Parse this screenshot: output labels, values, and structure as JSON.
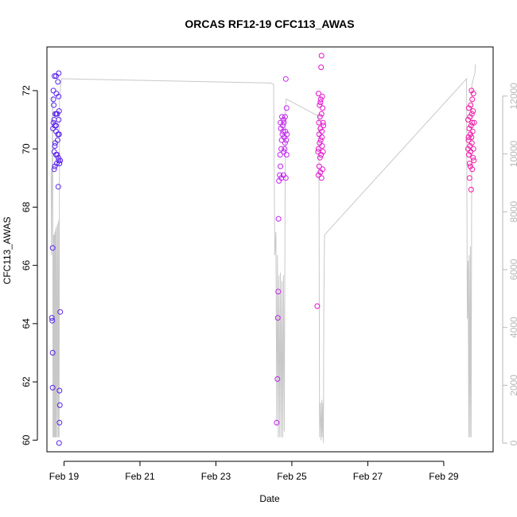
{
  "chart_data": {
    "type": "scatter",
    "title": "ORCAS RF12-19 CFC113_AWAS",
    "xlabel": "Date",
    "ylabel": "CFC113_AWAS",
    "x_unit": "day of February 2016",
    "xlim": [
      18.55,
      30.3
    ],
    "x_ticks": [
      {
        "value": 19,
        "label": "Feb 19"
      },
      {
        "value": 21,
        "label": "Feb 21"
      },
      {
        "value": 23,
        "label": "Feb 23"
      },
      {
        "value": 25,
        "label": "Feb 25"
      },
      {
        "value": 27,
        "label": "Feb 27"
      },
      {
        "value": 29,
        "label": "Feb 29"
      }
    ],
    "ylim": [
      59.6,
      73.5
    ],
    "y_ticks": [
      60,
      62,
      64,
      66,
      68,
      70,
      72
    ],
    "y2_ticks": [
      0,
      2000,
      4000,
      6000,
      8000,
      10000,
      12000
    ],
    "y2lim": [
      -300,
      13700
    ],
    "grid": false,
    "colors": {
      "axis": "#000000",
      "secondary_axis": "#b8b8b8",
      "secondary_line": "#c8c8c8",
      "flight_1": "#5a24ee",
      "flight_2": "#c226ef",
      "flight_3": "#e313ce",
      "flight_4": "#f219a7"
    },
    "series": [
      {
        "color": "#5a24ee",
        "points": [
          [
            18.7,
            66.6
          ],
          [
            18.68,
            64.2
          ],
          [
            18.69,
            64.1
          ],
          [
            18.7,
            63.0
          ],
          [
            18.7,
            61.8
          ],
          [
            18.88,
            61.7
          ],
          [
            18.89,
            61.2
          ],
          [
            18.88,
            60.6
          ],
          [
            18.87,
            59.9
          ],
          [
            18.9,
            64.4
          ],
          [
            18.85,
            68.7
          ],
          [
            18.72,
            72.0
          ],
          [
            18.75,
            72.5
          ],
          [
            18.79,
            72.5
          ],
          [
            18.86,
            72.6
          ],
          [
            18.8,
            71.9
          ],
          [
            18.86,
            71.8
          ],
          [
            18.72,
            71.7
          ],
          [
            18.73,
            71.5
          ],
          [
            18.8,
            71.2
          ],
          [
            18.77,
            71.2
          ],
          [
            18.87,
            71.3
          ],
          [
            18.82,
            71.2
          ],
          [
            18.74,
            71.0
          ],
          [
            18.72,
            70.9
          ],
          [
            18.79,
            70.8
          ],
          [
            18.86,
            71.0
          ],
          [
            18.76,
            70.8
          ],
          [
            18.71,
            70.7
          ],
          [
            18.79,
            70.6
          ],
          [
            18.84,
            70.5
          ],
          [
            18.87,
            70.5
          ],
          [
            18.83,
            70.3
          ],
          [
            18.76,
            70.1
          ],
          [
            18.74,
            69.9
          ],
          [
            18.79,
            69.8
          ],
          [
            18.82,
            69.8
          ],
          [
            18.85,
            69.7
          ],
          [
            18.9,
            69.6
          ],
          [
            18.86,
            69.6
          ],
          [
            18.76,
            69.4
          ],
          [
            18.81,
            69.5
          ],
          [
            18.74,
            69.3
          ],
          [
            18.77,
            70.2
          ],
          [
            18.84,
            72.3
          ],
          [
            18.88,
            69.5
          ]
        ]
      },
      {
        "color": "#c226ef",
        "points": [
          [
            24.6,
            60.6
          ],
          [
            24.62,
            62.1
          ],
          [
            24.63,
            64.2
          ],
          [
            24.64,
            65.1
          ],
          [
            24.65,
            67.6
          ],
          [
            24.68,
            69.1
          ],
          [
            24.7,
            69.4
          ],
          [
            24.66,
            68.9
          ],
          [
            24.72,
            69.0
          ],
          [
            24.78,
            69.1
          ],
          [
            24.84,
            69.0
          ],
          [
            24.69,
            69.8
          ],
          [
            24.79,
            69.9
          ],
          [
            24.86,
            69.8
          ],
          [
            24.73,
            70.3
          ],
          [
            24.75,
            70.5
          ],
          [
            24.8,
            70.4
          ],
          [
            24.82,
            70.2
          ],
          [
            24.85,
            70.3
          ],
          [
            24.87,
            70.5
          ],
          [
            24.71,
            70.7
          ],
          [
            24.76,
            70.8
          ],
          [
            24.79,
            70.9
          ],
          [
            24.83,
            70.6
          ],
          [
            24.7,
            70.9
          ],
          [
            24.74,
            71.1
          ],
          [
            24.78,
            71.0
          ],
          [
            24.82,
            71.1
          ],
          [
            24.86,
            71.4
          ],
          [
            24.72,
            70.0
          ],
          [
            24.77,
            70.6
          ],
          [
            24.81,
            70.0
          ],
          [
            24.84,
            72.4
          ]
        ]
      },
      {
        "color": "#e313ce",
        "points": [
          [
            25.67,
            64.6
          ],
          [
            25.7,
            69.1
          ],
          [
            25.72,
            69.4
          ],
          [
            25.75,
            69.2
          ],
          [
            25.78,
            69.0
          ],
          [
            25.74,
            69.7
          ],
          [
            25.77,
            69.8
          ],
          [
            25.81,
            69.3
          ],
          [
            25.7,
            70.0
          ],
          [
            25.73,
            70.2
          ],
          [
            25.76,
            70.3
          ],
          [
            25.8,
            70.1
          ],
          [
            25.72,
            70.5
          ],
          [
            25.75,
            70.7
          ],
          [
            25.79,
            70.6
          ],
          [
            25.82,
            70.9
          ],
          [
            25.71,
            70.9
          ],
          [
            25.74,
            71.1
          ],
          [
            25.78,
            71.2
          ],
          [
            25.81,
            71.4
          ],
          [
            25.73,
            71.5
          ],
          [
            25.76,
            71.7
          ],
          [
            25.8,
            71.8
          ],
          [
            25.7,
            71.9
          ],
          [
            25.75,
            71.6
          ],
          [
            25.77,
            72.8
          ],
          [
            25.78,
            73.2
          ],
          [
            25.82,
            69.9
          ],
          [
            25.69,
            69.9
          ],
          [
            25.79,
            70.4
          ],
          [
            25.83,
            70.8
          ]
        ]
      },
      {
        "color": "#f219a7",
        "points": [
          [
            29.72,
            68.6
          ],
          [
            29.68,
            69.0
          ],
          [
            29.7,
            69.4
          ],
          [
            29.75,
            69.3
          ],
          [
            29.66,
            69.8
          ],
          [
            29.71,
            69.9
          ],
          [
            29.77,
            69.7
          ],
          [
            29.64,
            70.0
          ],
          [
            29.69,
            70.1
          ],
          [
            29.74,
            70.2
          ],
          [
            29.78,
            70.0
          ],
          [
            29.65,
            70.3
          ],
          [
            29.7,
            70.5
          ],
          [
            29.73,
            70.4
          ],
          [
            29.76,
            70.6
          ],
          [
            29.67,
            70.7
          ],
          [
            29.72,
            70.8
          ],
          [
            29.75,
            70.9
          ],
          [
            29.64,
            71.0
          ],
          [
            29.69,
            71.1
          ],
          [
            29.74,
            71.2
          ],
          [
            29.77,
            71.3
          ],
          [
            29.66,
            71.4
          ],
          [
            29.71,
            71.5
          ],
          [
            29.75,
            71.7
          ],
          [
            29.78,
            71.9
          ],
          [
            29.73,
            72.0
          ],
          [
            29.68,
            69.5
          ],
          [
            29.79,
            69.6
          ],
          [
            29.65,
            70.4
          ],
          [
            29.8,
            70.9
          ]
        ]
      }
    ],
    "secondary_line": [
      [
        18.66,
        9400
      ],
      [
        18.67,
        6500
      ],
      [
        18.7,
        12000
      ],
      [
        18.71,
        200
      ],
      [
        18.72,
        7200
      ],
      [
        18.73,
        200
      ],
      [
        18.74,
        7200
      ],
      [
        18.75,
        200
      ],
      [
        18.76,
        7300
      ],
      [
        18.77,
        200
      ],
      [
        18.78,
        7400
      ],
      [
        18.79,
        200
      ],
      [
        18.8,
        7500
      ],
      [
        18.82,
        200
      ],
      [
        18.83,
        7600
      ],
      [
        18.85,
        200
      ],
      [
        18.86,
        7700
      ],
      [
        18.87,
        200
      ],
      [
        18.88,
        11900
      ],
      [
        18.92,
        12500
      ],
      [
        18.94,
        12600
      ],
      [
        24.45,
        12450
      ],
      [
        24.52,
        12400
      ],
      [
        24.55,
        6500
      ],
      [
        24.58,
        7300
      ],
      [
        24.6,
        600
      ],
      [
        24.62,
        6500
      ],
      [
        24.64,
        200
      ],
      [
        24.66,
        5800
      ],
      [
        24.68,
        200
      ],
      [
        24.7,
        5900
      ],
      [
        24.72,
        200
      ],
      [
        24.74,
        5600
      ],
      [
        24.76,
        200
      ],
      [
        24.78,
        5800
      ],
      [
        24.8,
        400
      ],
      [
        24.83,
        11400
      ],
      [
        24.85,
        11900
      ],
      [
        25.71,
        11300
      ],
      [
        25.73,
        200
      ],
      [
        25.75,
        1400
      ],
      [
        25.77,
        100
      ],
      [
        25.79,
        1500
      ],
      [
        25.8,
        200
      ],
      [
        25.82,
        1400
      ],
      [
        25.83,
        0
      ],
      [
        25.84,
        4600
      ],
      [
        25.86,
        7200
      ],
      [
        29.6,
        12600
      ],
      [
        29.62,
        4300
      ],
      [
        29.64,
        6300
      ],
      [
        29.66,
        200
      ],
      [
        29.67,
        6500
      ],
      [
        29.69,
        200
      ],
      [
        29.7,
        6800
      ],
      [
        29.72,
        200
      ],
      [
        29.74,
        12400
      ],
      [
        29.82,
        12800
      ],
      [
        29.83,
        13100
      ]
    ]
  }
}
